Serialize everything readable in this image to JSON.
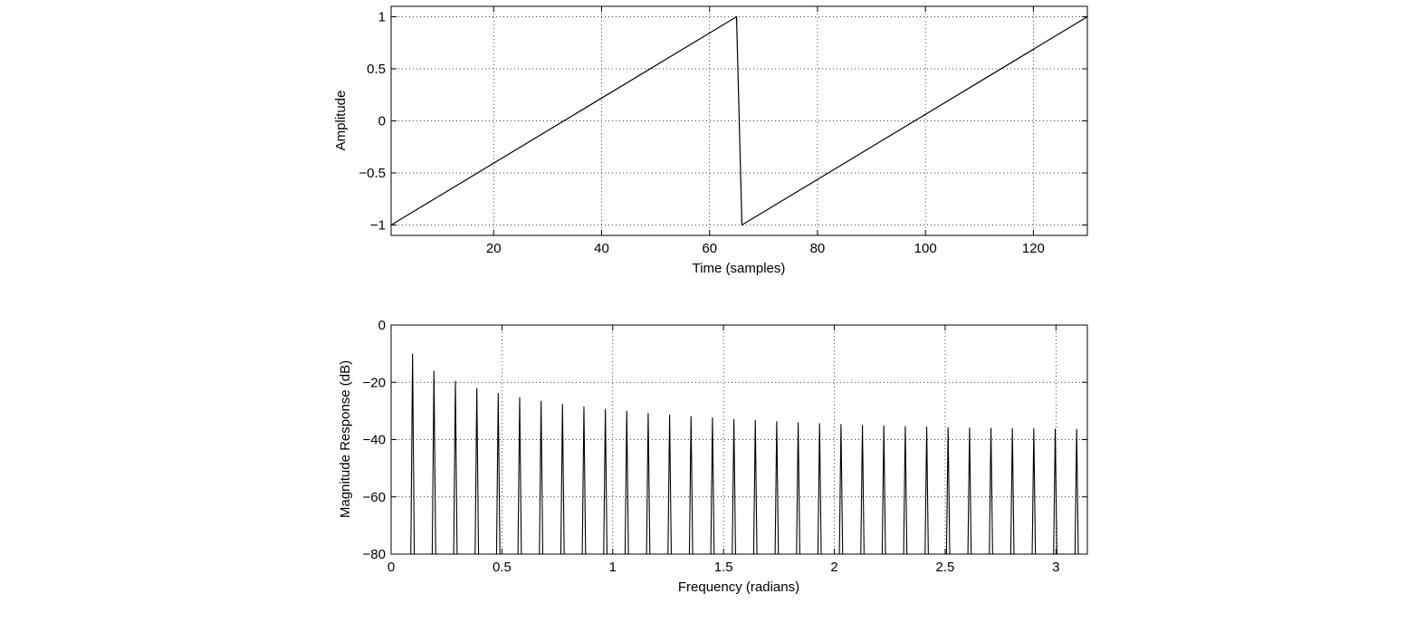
{
  "chart_data": [
    {
      "type": "line",
      "xlabel": "Time (samples)",
      "ylabel": "Amplitude",
      "xlim": [
        1,
        130
      ],
      "ylim": [
        -1.1,
        1.1
      ],
      "xticks": [
        20,
        40,
        60,
        80,
        100,
        120
      ],
      "xtick_labels": [
        "20",
        "40",
        "60",
        "80",
        "100",
        "120"
      ],
      "yticks": [
        -1,
        -0.5,
        0,
        0.5,
        1
      ],
      "ytick_labels": [
        "−1",
        "−0.5",
        "0",
        "0.5",
        "1"
      ],
      "grid": true,
      "series": [
        {
          "x": [
            1,
            65,
            66,
            130
          ],
          "y": [
            -1,
            1,
            -1,
            1
          ]
        }
      ]
    },
    {
      "type": "line",
      "xlabel": "Frequency (radians)",
      "ylabel": "Magnitude Response (dB)",
      "xlim": [
        0,
        3.1416
      ],
      "ylim": [
        -80,
        0
      ],
      "xticks": [
        0,
        0.5,
        1,
        1.5,
        2,
        2.5,
        3
      ],
      "xtick_labels": [
        "0",
        "0.5",
        "1",
        "1.5",
        "2",
        "2.5",
        "3"
      ],
      "yticks": [
        -80,
        -60,
        -40,
        -20,
        0
      ],
      "ytick_labels": [
        "−80",
        "−60",
        "−40",
        "−20",
        "0"
      ],
      "grid": true,
      "peak_frequencies": [
        0.0967,
        0.1933,
        0.29,
        0.3867,
        0.4833,
        0.58,
        0.6767,
        0.7733,
        0.87,
        0.9667,
        1.0633,
        1.16,
        1.2567,
        1.3533,
        1.45,
        1.5467,
        1.6433,
        1.74,
        1.8367,
        1.9333,
        2.03,
        2.1267,
        2.2233,
        2.32,
        2.4167,
        2.5133,
        2.61,
        2.7067,
        2.8033,
        2.9,
        2.9967,
        3.0933
      ],
      "peak_levels_db": [
        -10,
        -16,
        -19.5,
        -22,
        -23.8,
        -25.2,
        -26.5,
        -27.6,
        -28.5,
        -29.3,
        -30,
        -30.7,
        -31.3,
        -31.8,
        -32.3,
        -32.8,
        -33.2,
        -33.6,
        -34,
        -34.3,
        -34.6,
        -34.9,
        -35.1,
        -35.3,
        -35.5,
        -35.7,
        -35.8,
        -35.9,
        -36,
        -36.1,
        -36.2,
        -36.3
      ]
    }
  ]
}
